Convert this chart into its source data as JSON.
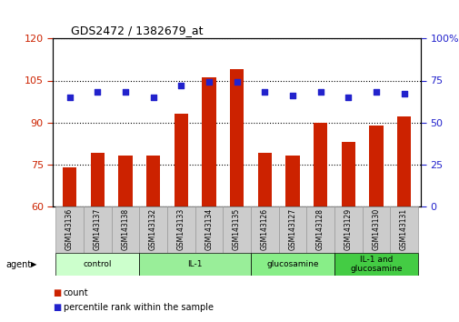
{
  "title": "GDS2472 / 1382679_at",
  "categories": [
    "GSM143136",
    "GSM143137",
    "GSM143138",
    "GSM143132",
    "GSM143133",
    "GSM143134",
    "GSM143135",
    "GSM143126",
    "GSM143127",
    "GSM143128",
    "GSM143129",
    "GSM143130",
    "GSM143131"
  ],
  "bar_values": [
    74,
    79,
    78,
    78,
    93,
    106,
    109,
    79,
    78,
    90,
    83,
    89,
    92
  ],
  "dot_values_pct": [
    65,
    68,
    68,
    65,
    72,
    74,
    74,
    68,
    66,
    68,
    65,
    68,
    67
  ],
  "bar_color": "#cc2200",
  "dot_color": "#2222cc",
  "ylim_left": [
    60,
    120
  ],
  "ylim_right": [
    0,
    100
  ],
  "yticks_left": [
    60,
    75,
    90,
    105,
    120
  ],
  "yticks_right": [
    0,
    25,
    50,
    75,
    100
  ],
  "ytick_right_labels": [
    "0",
    "25",
    "50",
    "75",
    "100%"
  ],
  "groups": [
    {
      "label": "control",
      "start": 0,
      "end": 3,
      "color": "#ccffcc"
    },
    {
      "label": "IL-1",
      "start": 3,
      "end": 7,
      "color": "#99ee99"
    },
    {
      "label": "glucosamine",
      "start": 7,
      "end": 10,
      "color": "#88ee88"
    },
    {
      "label": "IL-1 and\nglucosamine",
      "start": 10,
      "end": 13,
      "color": "#44cc44"
    }
  ],
  "agent_label": "agent",
  "legend_count_label": "count",
  "legend_percentile_label": "percentile rank within the sample",
  "tick_area_color": "#cccccc",
  "tick_area_border_color": "#999999"
}
